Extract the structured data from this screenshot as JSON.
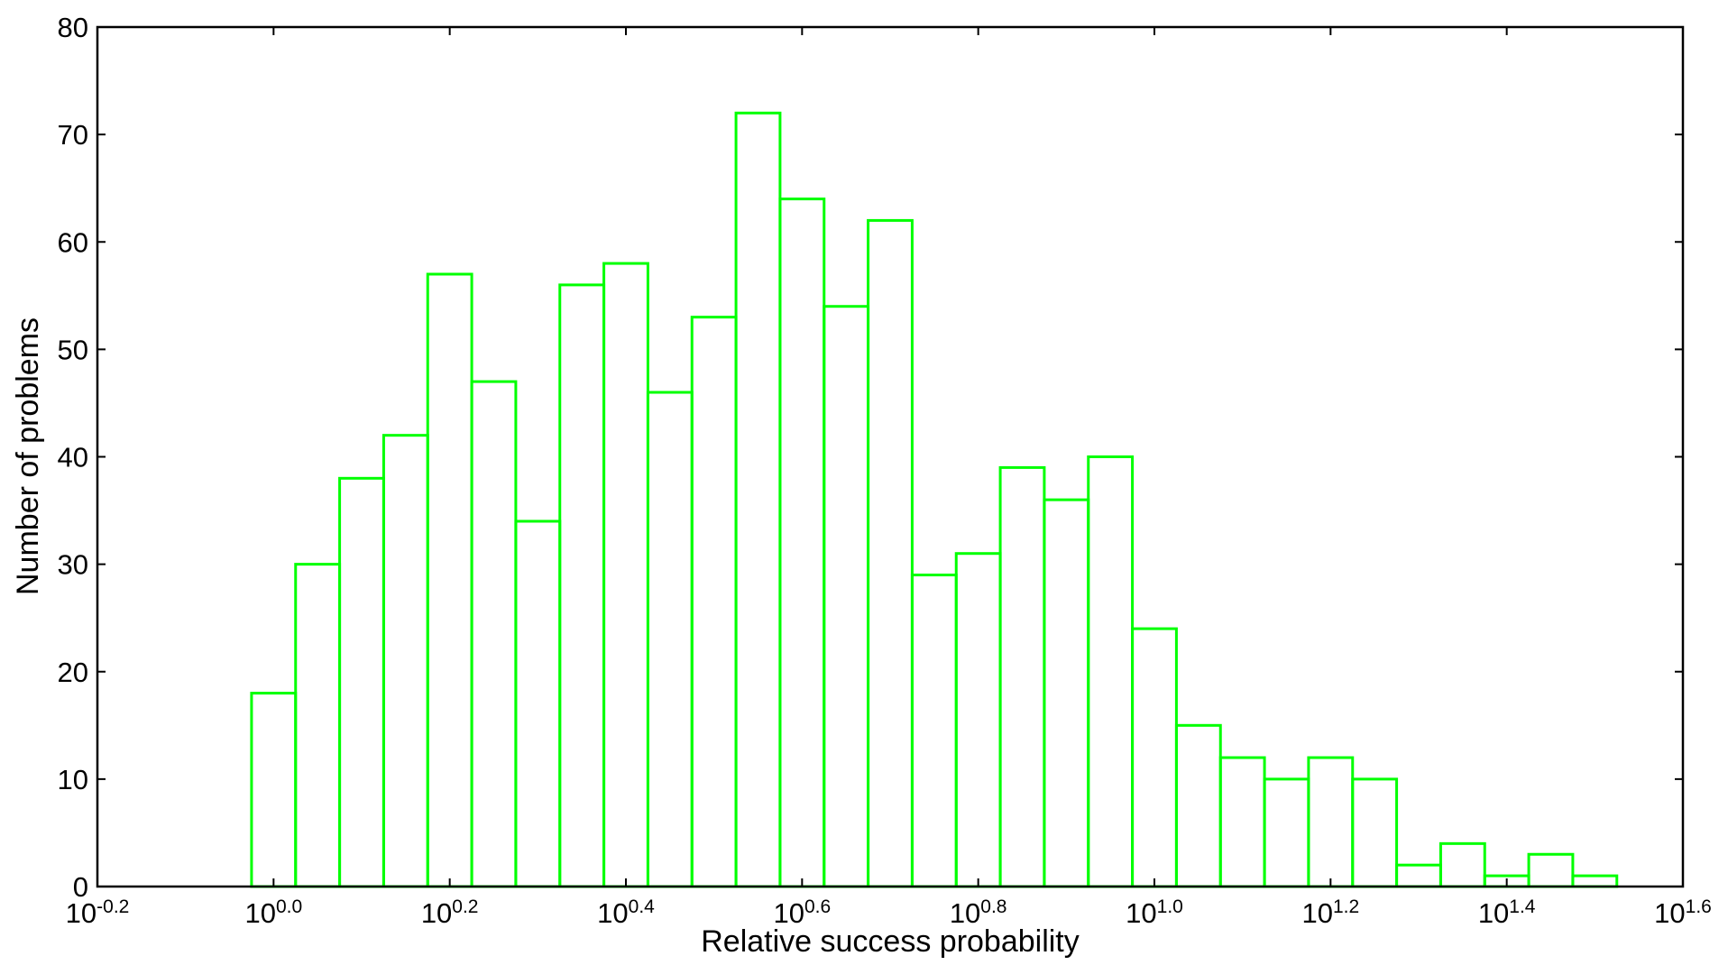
{
  "chart_data": {
    "type": "bar",
    "subtype": "histogram-step",
    "xlabel": "Relative success probability",
    "ylabel": "Number of problems",
    "x_scale": "log10",
    "x_range_exponent": [
      -0.2,
      1.6
    ],
    "ylim": [
      0,
      80
    ],
    "x_ticks": [
      {
        "base": "10",
        "exp": "-0.2"
      },
      {
        "base": "10",
        "exp": "0.0"
      },
      {
        "base": "10",
        "exp": "0.2"
      },
      {
        "base": "10",
        "exp": "0.4"
      },
      {
        "base": "10",
        "exp": "0.6"
      },
      {
        "base": "10",
        "exp": "0.8"
      },
      {
        "base": "10",
        "exp": "1.0"
      },
      {
        "base": "10",
        "exp": "1.2"
      },
      {
        "base": "10",
        "exp": "1.4"
      },
      {
        "base": "10",
        "exp": "1.6"
      }
    ],
    "y_ticks": [
      "0",
      "10",
      "20",
      "30",
      "40",
      "50",
      "60",
      "70",
      "80"
    ],
    "grid": false,
    "legend": "none",
    "series": [
      {
        "color": "#00ff00",
        "bin_start_exponent": -0.025,
        "bin_width_exponent": 0.05,
        "values": [
          18,
          30,
          38,
          42,
          57,
          47,
          34,
          56,
          58,
          46,
          53,
          72,
          64,
          54,
          62,
          29,
          31,
          39,
          36,
          40,
          24,
          15,
          12,
          10,
          12,
          10,
          2,
          4,
          1,
          3,
          1
        ]
      }
    ]
  }
}
